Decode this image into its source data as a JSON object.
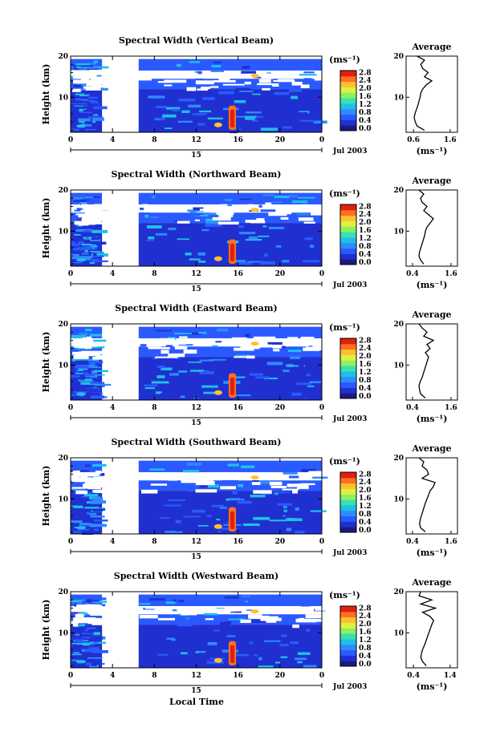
{
  "figure": {
    "xlabel": "Local Time",
    "date_label": "Jul 2003",
    "day_label": "15",
    "ylabel": "Height (km)",
    "unit_label": "(ms⁻¹)",
    "avg_title": "Average",
    "avg_xlabel": "(ms⁻¹)"
  },
  "colors": {
    "colormap": [
      "#1a1a80",
      "#2030d0",
      "#2a5aff",
      "#2f8cff",
      "#1fc0e8",
      "#3ae0b0",
      "#8cf060",
      "#e0f040",
      "#ffc030",
      "#ff7020",
      "#e02010"
    ],
    "background": "#ffffff"
  },
  "chart_data": [
    {
      "type": "heatmap",
      "title": "Spectral Width (Vertical Beam)",
      "x_ticks": [
        "0",
        "4",
        "8",
        "12",
        "16",
        "20",
        "0"
      ],
      "xlim": [
        0,
        24
      ],
      "y_ticks": [
        "10",
        "20"
      ],
      "ylim": [
        1.5,
        20
      ],
      "data_gap": [
        3,
        6.5
      ],
      "colorbar_ticks": [
        "2.8",
        "2.4",
        "2.0",
        "1.6",
        "1.2",
        "0.8",
        "0.4",
        "0.0"
      ],
      "colorbar_range": [
        0.0,
        2.8
      ],
      "average_profile": {
        "xlabel": "(ms⁻¹)",
        "x_ticks": [
          "0.6",
          "1.6"
        ],
        "xlim": [
          0.4,
          1.8
        ],
        "y_ticks": [
          "10",
          "20"
        ],
        "height_km": [
          2,
          3,
          4,
          5,
          6,
          7,
          8,
          9,
          10,
          11,
          12,
          13,
          14,
          15,
          16,
          17,
          18,
          19,
          20
        ],
        "width_ms": [
          0.9,
          0.7,
          0.65,
          0.62,
          0.64,
          0.68,
          0.72,
          0.75,
          0.78,
          0.8,
          0.85,
          0.95,
          1.1,
          0.9,
          1.0,
          0.85,
          0.8,
          0.9,
          0.7
        ]
      }
    },
    {
      "type": "heatmap",
      "title": "Spectral Width (Northward Beam)",
      "x_ticks": [
        "0",
        "4",
        "8",
        "12",
        "16",
        "20",
        "0"
      ],
      "xlim": [
        0,
        24
      ],
      "y_ticks": [
        "10",
        "20"
      ],
      "ylim": [
        1.5,
        20
      ],
      "data_gap": [
        3,
        6.5
      ],
      "colorbar_ticks": [
        "2.8",
        "2.4",
        "2.0",
        "1.6",
        "1.2",
        "0.8",
        "0.4",
        "0.0"
      ],
      "colorbar_range": [
        0.0,
        2.8
      ],
      "average_profile": {
        "xlabel": "(ms⁻¹)",
        "x_ticks": [
          "0.4",
          "1.6"
        ],
        "xlim": [
          0.2,
          1.8
        ],
        "y_ticks": [
          "10",
          "20"
        ],
        "height_km": [
          2,
          3,
          4,
          5,
          6,
          7,
          8,
          9,
          10,
          11,
          12,
          13,
          14,
          15,
          16,
          17,
          18,
          19,
          20
        ],
        "width_ms": [
          0.75,
          0.65,
          0.6,
          0.62,
          0.66,
          0.7,
          0.74,
          0.78,
          0.8,
          0.85,
          0.95,
          1.05,
          0.9,
          0.75,
          0.85,
          0.7,
          0.65,
          0.75,
          0.6
        ]
      }
    },
    {
      "type": "heatmap",
      "title": "Spectral Width (Eastward Beam)",
      "x_ticks": [
        "0",
        "4",
        "8",
        "12",
        "16",
        "20",
        "0"
      ],
      "xlim": [
        0,
        24
      ],
      "y_ticks": [
        "10",
        "20"
      ],
      "ylim": [
        1.5,
        20
      ],
      "data_gap": [
        3,
        6.5
      ],
      "colorbar_ticks": [
        "2.8",
        "2.4",
        "2.0",
        "1.6",
        "1.2",
        "0.8",
        "0.4",
        "0.0"
      ],
      "colorbar_range": [
        0.0,
        2.8
      ],
      "average_profile": {
        "xlabel": "(ms⁻¹)",
        "x_ticks": [
          "0.4",
          "1.6"
        ],
        "xlim": [
          0.2,
          1.8
        ],
        "y_ticks": [
          "10",
          "20"
        ],
        "height_km": [
          2,
          3,
          4,
          5,
          6,
          7,
          8,
          9,
          10,
          11,
          12,
          13,
          14,
          15,
          16,
          17,
          18,
          19,
          20
        ],
        "width_ms": [
          0.8,
          0.65,
          0.62,
          0.6,
          0.64,
          0.7,
          0.74,
          0.78,
          0.82,
          0.86,
          0.9,
          0.8,
          0.95,
          0.85,
          1.05,
          0.75,
          0.85,
          0.7,
          0.6
        ]
      }
    },
    {
      "type": "heatmap",
      "title": "Spectral Width (Southward Beam)",
      "x_ticks": [
        "0",
        "4",
        "8",
        "12",
        "16",
        "20",
        "0"
      ],
      "xlim": [
        0,
        24
      ],
      "y_ticks": [
        "10",
        "20"
      ],
      "ylim": [
        1.5,
        20
      ],
      "data_gap": [
        3,
        6.5
      ],
      "colorbar_ticks": [
        "2.8",
        "2.4",
        "2.0",
        "1.6",
        "1.2",
        "0.8",
        "0.4",
        "0.0"
      ],
      "colorbar_range": [
        0.0,
        2.8
      ],
      "average_profile": {
        "xlabel": "(ms⁻¹)",
        "x_ticks": [
          "0.4",
          "1.6"
        ],
        "xlim": [
          0.2,
          1.8
        ],
        "y_ticks": [
          "10",
          "20"
        ],
        "height_km": [
          2,
          3,
          4,
          5,
          6,
          7,
          8,
          9,
          10,
          11,
          12,
          13,
          14,
          15,
          16,
          17,
          18,
          19,
          20
        ],
        "width_ms": [
          0.8,
          0.65,
          0.62,
          0.64,
          0.68,
          0.72,
          0.76,
          0.8,
          0.85,
          0.9,
          0.95,
          1.05,
          1.1,
          0.7,
          0.9,
          0.85,
          0.7,
          0.75,
          0.6
        ]
      }
    },
    {
      "type": "heatmap",
      "title": "Spectral Width (Westward Beam)",
      "x_ticks": [
        "0",
        "4",
        "8",
        "12",
        "16",
        "20",
        "0"
      ],
      "xlim": [
        0,
        24
      ],
      "y_ticks": [
        "10",
        "20"
      ],
      "ylim": [
        1.5,
        20
      ],
      "data_gap": [
        3,
        6.5
      ],
      "colorbar_ticks": [
        "2.8",
        "2.4",
        "2.0",
        "1.6",
        "1.2",
        "0.8",
        "0.4",
        "0.0"
      ],
      "colorbar_range": [
        0.0,
        2.8
      ],
      "average_profile": {
        "xlabel": "(ms⁻¹)",
        "x_ticks": [
          "0.4",
          "1.4"
        ],
        "xlim": [
          0.2,
          1.6
        ],
        "y_ticks": [
          "10",
          "20"
        ],
        "height_km": [
          2,
          3,
          4,
          5,
          6,
          7,
          8,
          9,
          10,
          11,
          12,
          13,
          14,
          15,
          16,
          17,
          18,
          19,
          20
        ],
        "width_ms": [
          0.75,
          0.65,
          0.6,
          0.62,
          0.65,
          0.7,
          0.74,
          0.78,
          0.82,
          0.86,
          0.9,
          0.95,
          0.85,
          0.65,
          1.0,
          0.6,
          0.9,
          0.55,
          0.6
        ]
      }
    }
  ]
}
